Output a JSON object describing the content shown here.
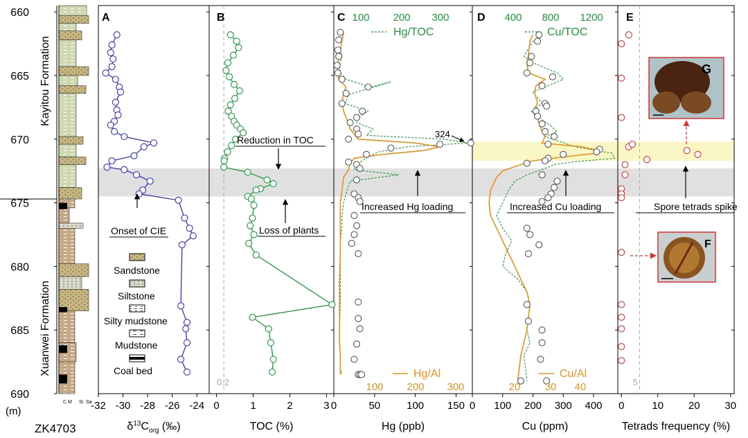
{
  "figure": {
    "section_name": "ZK4703",
    "depth_unit": "(m)",
    "depth_ticks": [
      660,
      665,
      670,
      675,
      680,
      685,
      690
    ],
    "formations": [
      {
        "name": "Kayitou Formation",
        "from": 659.5,
        "to": 674.7
      },
      {
        "name": "Xuanwei Formation",
        "from": 674.7,
        "to": 690
      }
    ],
    "grain_size_labels": [
      "C",
      "M",
      "Si",
      "Sa"
    ],
    "lithology_legend": [
      {
        "label": "Sandstone",
        "pattern": "sand"
      },
      {
        "label": "Siltstone",
        "pattern": "silt"
      },
      {
        "label": "Silty mudstone",
        "pattern": "siltymud"
      },
      {
        "label": "Mudstone",
        "pattern": "mud"
      },
      {
        "label": "Coal bed",
        "pattern": "coal"
      }
    ],
    "gray_band": [
      672.3,
      674.5
    ],
    "yellow_band": [
      670.2,
      671.7
    ],
    "colors": {
      "blue": "#3030c8",
      "green": "#1a9a3a",
      "orange": "#e8901a",
      "red": "#e03030",
      "gray_band": "#e0e0e0",
      "yellow_band": "#fbf7c4"
    }
  },
  "chart_data": [
    {
      "type": "line",
      "panel": "A",
      "xlabel_main": "δ",
      "xlabel_sup": "13",
      "xlabel_c": "C",
      "xlabel_sub": "org",
      "xlabel_unit": " (‰)",
      "xlim": [
        -32,
        -23
      ],
      "xticks": [
        -32,
        -30,
        -28,
        -26,
        -24
      ],
      "annotations": [
        "Onset of CIE"
      ],
      "series": [
        {
          "color": "#3030c8",
          "x": [
            -30.5,
            -30.9,
            -31.0,
            -30.8,
            -30.9,
            -31.4,
            -30.6,
            -30.3,
            -30.2,
            -30.6,
            -30.5,
            -30.4,
            -30.7,
            -31.0,
            -30.7,
            -29.9,
            -27.5,
            -28.3,
            -29.1,
            -30.9,
            -31.3,
            -29.9,
            -28.9,
            -27.8,
            -28.4,
            -28.7,
            -25.5,
            -25.0,
            -24.6,
            -24.3,
            -25.2,
            -25.3,
            -24.8,
            -24.9,
            -24.8,
            -25.3,
            -24.8
          ],
          "y": [
            661.8,
            662.6,
            663.2,
            663.7,
            664.3,
            664.8,
            665.3,
            665.9,
            666.3,
            667.1,
            667.7,
            668.1,
            668.6,
            668.9,
            669.4,
            669.8,
            670.3,
            670.6,
            671.3,
            671.7,
            672.2,
            672.4,
            672.8,
            673.3,
            674.0,
            674.3,
            674.8,
            676.2,
            677.0,
            677.6,
            678.3,
            683.1,
            684.4,
            684.9,
            686.0,
            687.3,
            688.3
          ]
        }
      ]
    },
    {
      "type": "line",
      "panel": "B",
      "xlabel": "TOC (%)",
      "xlim": [
        -0.2,
        3.2
      ],
      "xticks": [
        0,
        1,
        2,
        3
      ],
      "ref_value": 0.2,
      "ref_label": "0.2",
      "annotations": [
        "Reduction in TOC",
        "Loss of plants"
      ],
      "series": [
        {
          "color": "#1a9a3a",
          "x": [
            0.38,
            0.55,
            0.6,
            0.46,
            0.31,
            0.26,
            0.35,
            0.48,
            0.63,
            0.5,
            0.38,
            0.32,
            0.41,
            0.48,
            0.55,
            0.65,
            0.73,
            0.52,
            0.41,
            0.3,
            0.22,
            0.21,
            0.2,
            0.85,
            1.38,
            1.55,
            1.2,
            1.08,
            0.85,
            0.95,
            1.02,
            0.98,
            0.92,
            1.02,
            0.88,
            1.08,
            3.15,
            0.98,
            1.42,
            1.48,
            1.55,
            1.52
          ],
          "y": [
            661.8,
            662.3,
            662.8,
            663.4,
            664.0,
            664.6,
            665.1,
            665.7,
            666.2,
            666.8,
            667.3,
            667.8,
            668.2,
            668.6,
            668.9,
            669.2,
            669.5,
            670.0,
            670.5,
            671.0,
            671.5,
            671.7,
            672.2,
            672.6,
            673.2,
            673.5,
            673.9,
            674.0,
            674.5,
            674.7,
            675.2,
            676.2,
            676.8,
            677.5,
            678.2,
            679.1,
            683.0,
            684.0,
            684.9,
            686.0,
            687.3,
            688.3
          ]
        }
      ]
    },
    {
      "type": "scatter",
      "panel": "C",
      "xlabel": "Hg (ppb)",
      "xlim": [
        0,
        170
      ],
      "xticks": [
        0,
        50,
        100,
        150
      ],
      "top_axis": {
        "label": "Hg/TOC",
        "ticks": [
          100,
          200,
          300
        ]
      },
      "bottom_axis2": {
        "label": "Hg/Al",
        "ticks": [
          100,
          200,
          300
        ]
      },
      "annotations": [
        "324",
        "Increased Hg loading"
      ],
      "series": [
        {
          "name": "Hg",
          "marker": "circle",
          "color": "#555555",
          "x": [
            8,
            6,
            5,
            6,
            4,
            5,
            10,
            42,
            15,
            10,
            35,
            28,
            20,
            28,
            30,
            18,
            168,
            130,
            70,
            40,
            18,
            28,
            32,
            28,
            25,
            30,
            32,
            25,
            28,
            25,
            22,
            30,
            30,
            30,
            32,
            28,
            25,
            30,
            32,
            34
          ],
          "y": [
            661.6,
            662.2,
            663.0,
            663.5,
            664.2,
            664.8,
            665.3,
            665.9,
            666.4,
            667.2,
            667.8,
            668.3,
            668.7,
            669.2,
            669.6,
            670.0,
            670.3,
            670.4,
            670.7,
            671.2,
            671.8,
            672.0,
            672.3,
            673.2,
            674.3,
            674.6,
            674.9,
            676.0,
            676.8,
            677.5,
            678.2,
            679.0,
            682.8,
            684.1,
            684.9,
            686.1,
            687.3,
            688.5,
            688.5,
            688.5
          ]
        },
        {
          "name": "Hg/TOC",
          "style": "dashed",
          "color": "#1a9a3a",
          "x": [
            12,
            10,
            8,
            10,
            7,
            8,
            15,
            45,
            70,
            18,
            14,
            42,
            30,
            28,
            48,
            40,
            135,
            165,
            90,
            55,
            42,
            30,
            25,
            80,
            20,
            15,
            12,
            10,
            10,
            8,
            8,
            8,
            8,
            7,
            7,
            8,
            8,
            10
          ],
          "y": [
            661.6,
            662.2,
            663.0,
            663.5,
            664.2,
            664.8,
            665.3,
            665.9,
            665.5,
            666.5,
            667.2,
            667.8,
            668.3,
            668.7,
            669.2,
            669.7,
            670.0,
            670.3,
            670.6,
            671.0,
            671.4,
            671.9,
            672.4,
            672.8,
            673.3,
            674.3,
            675.0,
            676.0,
            677.0,
            678.0,
            679.0,
            681.0,
            683.0,
            685.0,
            686.0,
            687.0,
            688.0,
            688.5
          ]
        },
        {
          "name": "Hg/Al",
          "style": "solid",
          "color": "#e8901a",
          "x": [
            12,
            10,
            8,
            6,
            5,
            5,
            6,
            15,
            12,
            10,
            12,
            15,
            18,
            20,
            25,
            30,
            100,
            130,
            110,
            60,
            25,
            20,
            18,
            12,
            10,
            8,
            8,
            8,
            8,
            8,
            7,
            7,
            7,
            7,
            7,
            8,
            8,
            8
          ],
          "y": [
            661.6,
            662.2,
            663.0,
            663.5,
            664.2,
            664.8,
            665.3,
            665.9,
            666.4,
            667.2,
            667.8,
            668.3,
            668.7,
            669.2,
            669.6,
            670.0,
            670.3,
            670.6,
            670.9,
            671.2,
            671.5,
            671.9,
            672.4,
            673.0,
            674.0,
            675.0,
            676.0,
            677.0,
            678.0,
            679.0,
            681.0,
            683.0,
            684.0,
            685.0,
            686.0,
            687.0,
            688.0,
            688.5
          ]
        }
      ]
    },
    {
      "type": "scatter",
      "panel": "D",
      "xlabel": "Cu (ppm)",
      "xlim": [
        0,
        480
      ],
      "xticks": [
        0,
        100,
        200,
        300,
        400
      ],
      "top_axis": {
        "label": "Cu/TOC",
        "ticks": [
          400,
          800,
          1200
        ]
      },
      "bottom_axis2": {
        "label": "Cu/Al",
        "ticks": [
          20,
          30,
          40
        ]
      },
      "annotations": [
        "Increased Cu loading"
      ],
      "series": [
        {
          "name": "Cu",
          "marker": "circle",
          "color": "#555555",
          "x": [
            220,
            215,
            195,
            190,
            180,
            265,
            230,
            240,
            245,
            210,
            215,
            230,
            240,
            270,
            250,
            420,
            410,
            300,
            250,
            240,
            180,
            230,
            280,
            270,
            260,
            250,
            230,
            180,
            190,
            220,
            185,
            180,
            185,
            230,
            230,
            225,
            245,
            160
          ],
          "y": [
            661.8,
            662.3,
            663.5,
            664.0,
            664.8,
            665.1,
            665.8,
            667.2,
            667.4,
            667.8,
            668.2,
            668.8,
            669.4,
            669.8,
            670.4,
            670.8,
            671.0,
            671.2,
            671.5,
            671.7,
            671.9,
            672.8,
            673.3,
            673.8,
            674.3,
            674.6,
            674.9,
            677.0,
            677.5,
            678.3,
            679.0,
            683.0,
            684.3,
            685.0,
            686.0,
            687.3,
            689.0,
            689.0
          ]
        },
        {
          "name": "Cu/TOC",
          "style": "dashed",
          "color": "#1a9a3a",
          "x": [
            230,
            200,
            170,
            200,
            280,
            300,
            250,
            200,
            230,
            195,
            210,
            250,
            280,
            240,
            290,
            340,
            410,
            460,
            470,
            330,
            270,
            240,
            180,
            140,
            120,
            100,
            80,
            100,
            130,
            110,
            100,
            150,
            180,
            190,
            180,
            190,
            170,
            180
          ],
          "y": [
            661.8,
            662.3,
            663.5,
            664.0,
            664.8,
            665.3,
            665.8,
            666.3,
            667.2,
            667.8,
            668.2,
            668.8,
            669.4,
            669.8,
            670.2,
            670.6,
            670.9,
            671.1,
            671.5,
            671.8,
            672.0,
            672.3,
            672.8,
            673.3,
            674.0,
            675.0,
            676.0,
            677.0,
            678.0,
            679.0,
            680.0,
            681.0,
            682.0,
            683.0,
            685.0,
            686.0,
            687.0,
            689.0
          ]
        },
        {
          "name": "Cu/Al",
          "style": "solid",
          "color": "#e8901a",
          "x": [
            200,
            190,
            185,
            180,
            185,
            240,
            210,
            205,
            215,
            200,
            215,
            220,
            230,
            240,
            230,
            360,
            420,
            410,
            300,
            200,
            160,
            100,
            80,
            70,
            60,
            55,
            60,
            80,
            100,
            120,
            140,
            160,
            180,
            190,
            180,
            170,
            160,
            150
          ],
          "y": [
            661.8,
            662.3,
            663.5,
            664.0,
            664.8,
            665.3,
            665.8,
            666.3,
            667.2,
            667.8,
            668.2,
            668.8,
            669.4,
            669.8,
            670.3,
            670.6,
            670.9,
            671.1,
            671.4,
            671.7,
            672.0,
            672.5,
            673.0,
            673.5,
            674.0,
            675.0,
            676.0,
            677.0,
            678.0,
            679.0,
            680.0,
            681.0,
            682.0,
            683.0,
            685.0,
            686.0,
            687.0,
            689.0
          ]
        }
      ]
    },
    {
      "type": "scatter",
      "panel": "E",
      "xlabel": "Tetrads frequency (%)",
      "xlim": [
        -1,
        31
      ],
      "xticks": [
        0,
        10,
        20,
        30
      ],
      "ref_value": 5,
      "ref_label": "5",
      "annotations": [
        "Spore tetrads spike"
      ],
      "series": [
        {
          "name": "Tetrads",
          "marker": "circle",
          "color": "#e03030",
          "x": [
            2,
            0,
            0,
            0,
            2,
            3,
            7,
            18,
            21,
            1,
            1,
            0,
            0,
            0,
            0,
            0,
            0,
            0,
            0,
            0,
            0
          ],
          "y": [
            661.8,
            662.5,
            665.2,
            668.3,
            670.6,
            670.4,
            671.6,
            670.9,
            671.2,
            672.0,
            672.8,
            673.9,
            674.3,
            674.6,
            678.9,
            683.0,
            684.0,
            684.9,
            686.3,
            687.4,
            687.4
          ]
        }
      ]
    }
  ],
  "photos": [
    {
      "label": "G"
    },
    {
      "label": "F"
    }
  ]
}
